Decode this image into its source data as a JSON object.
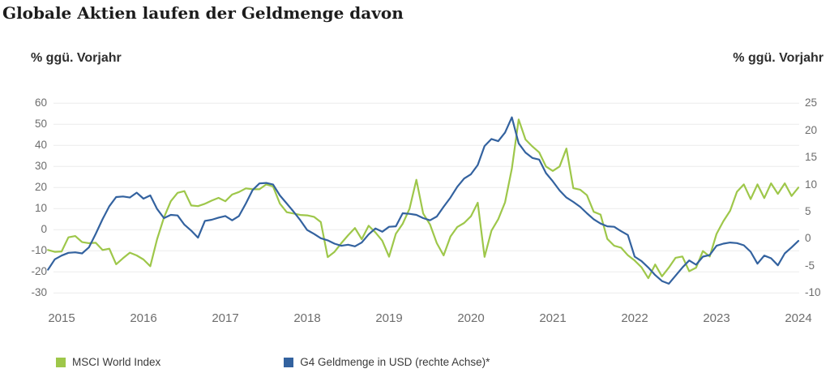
{
  "title": "Globale Aktien laufen der Geldmenge davon",
  "left_axis_header": "% ggü. Vorjahr",
  "right_axis_header": "% ggü. Vorjahr",
  "colors": {
    "green_series": "#9EC74A",
    "blue_series": "#33629F",
    "gridline": "#ececec",
    "tick_text": "#6d6d6d",
    "background": "#ffffff"
  },
  "legend": [
    {
      "label": "MSCI World Index",
      "color": "#9EC74A"
    },
    {
      "label": "G4 Geldmenge in USD (rechte Achse)*",
      "color": "#33629F"
    }
  ],
  "chart_data": {
    "type": "line",
    "title": "Globale Aktien laufen der Geldmenge davon",
    "frequency": "monthly",
    "start_month": "2014-11",
    "grid": "horizontal",
    "legend_position": "bottom",
    "x_tick_labels": [
      "2015",
      "2016",
      "2017",
      "2018",
      "2019",
      "2020",
      "2021",
      "2022",
      "2023",
      "2024"
    ],
    "left_axis": {
      "label": "% ggü. Vorjahr",
      "ticks": [
        60,
        50,
        40,
        30,
        20,
        10,
        0,
        -10,
        -20,
        -30
      ],
      "range": [
        -30,
        60
      ]
    },
    "right_axis": {
      "label": "% ggü. Vorjahr",
      "ticks": [
        25,
        20,
        15,
        10,
        5,
        0,
        -5,
        -10
      ],
      "range": [
        -10,
        25
      ]
    },
    "series": [
      {
        "name": "MSCI World Index",
        "axis": "left",
        "color": "#9EC74A",
        "values": [
          -9.6,
          -10.5,
          -10.3,
          -3.6,
          -3.0,
          -5.9,
          -6.4,
          -6.2,
          -9.6,
          -9.0,
          -16.4,
          -13.5,
          -10.9,
          -12.2,
          -14.1,
          -17.3,
          -4.5,
          5.8,
          13.5,
          17.5,
          18.3,
          11.5,
          11.2,
          12.3,
          13.8,
          15.1,
          13.5,
          16.7,
          17.9,
          19.6,
          19.2,
          19.2,
          21.5,
          20.5,
          12.4,
          8.3,
          7.7,
          7.0,
          6.8,
          6.1,
          3.6,
          -13.0,
          -10.5,
          -6.4,
          -2.6,
          0.8,
          -4.5,
          1.9,
          -1.3,
          -5.2,
          -12.8,
          -1.9,
          2.8,
          9.9,
          23.7,
          7.7,
          2.5,
          -6.4,
          -12.2,
          -3.2,
          1.3,
          3.2,
          6.4,
          12.8,
          -12.9,
          -0.5,
          5.0,
          13.0,
          29.0,
          52.3,
          42.8,
          39.5,
          36.7,
          30.0,
          27.9,
          30.0,
          38.5,
          19.7,
          19.0,
          16.4,
          8.5,
          7.2,
          -4.4,
          -7.6,
          -8.5,
          -12.1,
          -14.6,
          -17.8,
          -23.0,
          -16.5,
          -22.1,
          -18.0,
          -13.3,
          -12.7,
          -19.7,
          -18.0,
          -10.1,
          -12.7,
          -2.0,
          4.0,
          9.0,
          18.0,
          21.5,
          14.5,
          21.5,
          15.0,
          22.0,
          17.0,
          22.0,
          16.0,
          20.0
        ]
      },
      {
        "name": "G4 Geldmenge in USD (rechte Achse)*",
        "axis": "right",
        "color": "#33629F",
        "values": [
          -5.7,
          -3.8,
          -3.1,
          -2.6,
          -2.5,
          -2.7,
          -1.6,
          0.9,
          3.6,
          6.0,
          7.7,
          7.8,
          7.6,
          8.5,
          7.4,
          8.0,
          5.5,
          3.8,
          4.4,
          4.3,
          2.6,
          1.5,
          0.2,
          3.3,
          3.5,
          3.9,
          4.2,
          3.4,
          4.2,
          6.5,
          9.0,
          10.2,
          10.3,
          10.0,
          8.0,
          6.5,
          5.0,
          3.4,
          1.6,
          0.9,
          0.1,
          -0.3,
          -0.9,
          -1.3,
          -1.1,
          -1.4,
          -0.7,
          0.8,
          1.9,
          1.3,
          2.2,
          2.3,
          4.7,
          4.6,
          4.4,
          3.8,
          3.4,
          4.1,
          5.9,
          7.6,
          9.6,
          11.1,
          11.9,
          13.6,
          17.1,
          18.4,
          18.0,
          19.6,
          22.4,
          17.6,
          15.9,
          14.9,
          14.6,
          12.1,
          10.6,
          8.9,
          7.6,
          6.8,
          5.9,
          4.7,
          3.6,
          2.8,
          2.3,
          2.2,
          1.4,
          0.7,
          -3.3,
          -4.1,
          -5.3,
          -6.7,
          -7.8,
          -8.3,
          -6.8,
          -5.3,
          -4.0,
          -4.8,
          -3.3,
          -3.0,
          -1.3,
          -0.9,
          -0.7,
          -0.8,
          -1.2,
          -2.4,
          -4.6,
          -3.1,
          -3.6,
          -4.9,
          -2.7,
          -1.6,
          -0.4
        ]
      }
    ]
  }
}
